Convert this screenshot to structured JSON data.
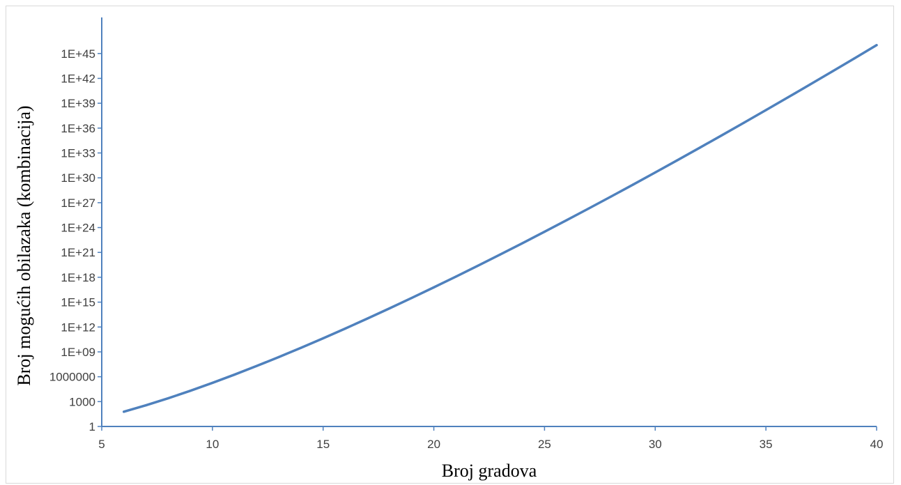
{
  "chart_data": {
    "type": "line",
    "title": "",
    "xlabel": "Broj gradova",
    "ylabel": "Broj mogućih obilazaka (kombinacija)",
    "xlim": [
      5,
      40
    ],
    "ylim": [
      1,
      1e+47
    ],
    "y_scale": "log",
    "grid": false,
    "x_ticks": [
      5,
      10,
      15,
      20,
      25,
      30,
      35,
      40
    ],
    "x_tick_labels": [
      "5",
      "10",
      "15",
      "20",
      "25",
      "30",
      "35",
      "40"
    ],
    "y_ticks": [
      1,
      1000,
      1000000,
      1000000000.0,
      1000000000000.0,
      1000000000000000.0,
      1e+18,
      1e+21,
      1e+24,
      1e+27,
      1e+30,
      1e+33,
      1e+36,
      1e+39,
      1e+42,
      1e+45
    ],
    "y_tick_labels": [
      "1",
      "1000",
      "1000000",
      "1E+09",
      "1E+12",
      "1E+15",
      "1E+18",
      "1E+21",
      "1E+24",
      "1E+27",
      "1E+30",
      "1E+33",
      "1E+36",
      "1E+39",
      "1E+42",
      "1E+45"
    ],
    "series": [
      {
        "color": "#4f81bd",
        "x": [
          6,
          7,
          8,
          9,
          10,
          11,
          12,
          13,
          14,
          15,
          16,
          17,
          18,
          19,
          20,
          21,
          22,
          23,
          24,
          25,
          26,
          27,
          28,
          29,
          30,
          31,
          32,
          33,
          34,
          35,
          36,
          37,
          38,
          39,
          40
        ],
        "y": [
          60,
          360,
          2520,
          20160,
          181440,
          1814400,
          19958400,
          239500800,
          3113510400,
          43589145600,
          653837184000,
          10461394944000,
          177843714048000,
          3201186852864000,
          60822550204416000,
          1.21645100408832e+18,
          2.55454710858547e+19,
          5.62000363888804e+20,
          1.29260083694425e+22,
          3.1022420086662e+23,
          7.7556050216655e+24,
          2.01645730563303e+26,
          5.44443472520918e+27,
          1.52444172305857e+29,
          4.42088099686986e+30,
          1.32626429906096e+32,
          4.11141932708897e+33,
          1.31565418466847e+35,
          4.34165880940595e+36,
          1.47616399519802e+38,
          5.16657398319306e+39,
          1.8599666339495e+41,
          6.88187654561316e+42,
          2.615113087333e+44,
          1.01989410405987e+46
        ]
      }
    ]
  }
}
